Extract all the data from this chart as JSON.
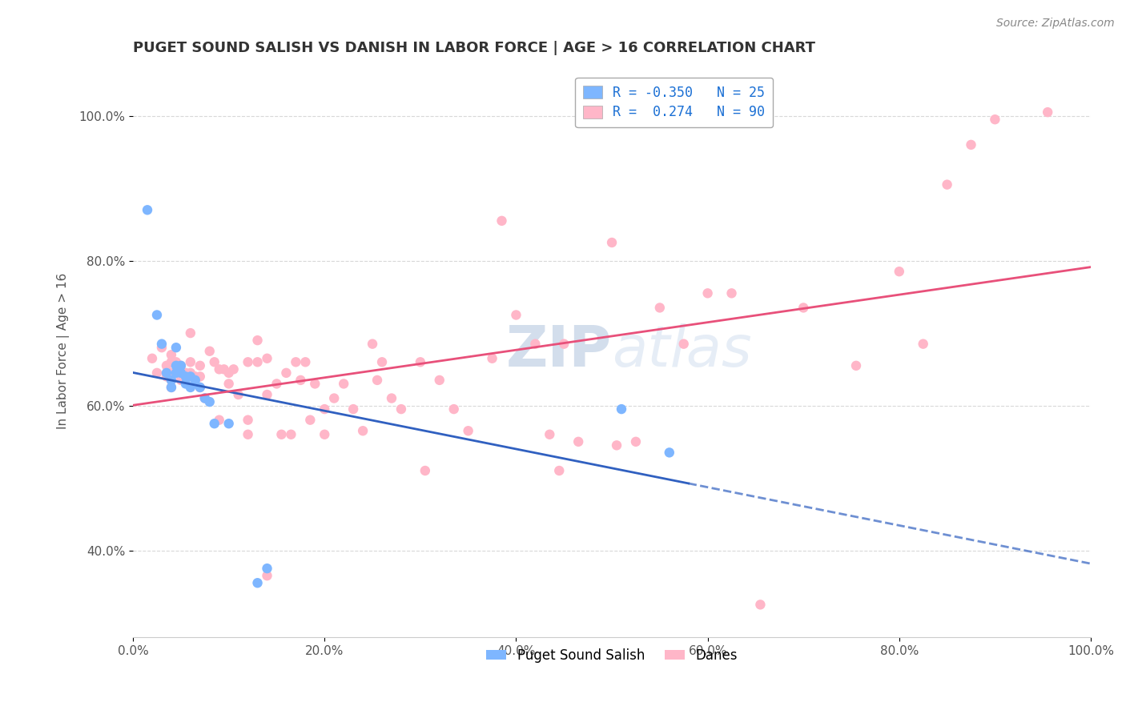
{
  "title": "PUGET SOUND SALISH VS DANISH IN LABOR FORCE | AGE > 16 CORRELATION CHART",
  "source_text": "Source: ZipAtlas.com",
  "ylabel": "In Labor Force | Age > 16",
  "xlim": [
    0.0,
    1.0
  ],
  "ylim": [
    0.28,
    1.07
  ],
  "xticks": [
    0.0,
    0.2,
    0.4,
    0.6,
    0.8,
    1.0
  ],
  "xticklabels": [
    "0.0%",
    "20.0%",
    "40.0%",
    "60.0%",
    "80.0%",
    "100.0%"
  ],
  "ytick_positions": [
    0.4,
    0.6,
    0.8,
    1.0
  ],
  "yticklabels": [
    "40.0%",
    "60.0%",
    "80.0%",
    "100.0%"
  ],
  "watermark_zip": "ZIP",
  "watermark_atlas": "atlas",
  "blue_color": "#7EB6FF",
  "pink_color": "#FFB6C8",
  "blue_line_color": "#3060C0",
  "pink_line_color": "#E8507A",
  "blue_line_solid_end": 0.58,
  "blue_scatter": [
    [
      0.015,
      0.87
    ],
    [
      0.025,
      0.725
    ],
    [
      0.03,
      0.685
    ],
    [
      0.035,
      0.645
    ],
    [
      0.04,
      0.635
    ],
    [
      0.04,
      0.625
    ],
    [
      0.045,
      0.68
    ],
    [
      0.045,
      0.655
    ],
    [
      0.045,
      0.645
    ],
    [
      0.05,
      0.655
    ],
    [
      0.05,
      0.645
    ],
    [
      0.055,
      0.64
    ],
    [
      0.055,
      0.63
    ],
    [
      0.06,
      0.64
    ],
    [
      0.06,
      0.625
    ],
    [
      0.065,
      0.635
    ],
    [
      0.07,
      0.625
    ],
    [
      0.075,
      0.61
    ],
    [
      0.08,
      0.605
    ],
    [
      0.085,
      0.575
    ],
    [
      0.1,
      0.575
    ],
    [
      0.13,
      0.355
    ],
    [
      0.14,
      0.375
    ],
    [
      0.51,
      0.595
    ],
    [
      0.56,
      0.535
    ]
  ],
  "pink_scatter": [
    [
      0.02,
      0.665
    ],
    [
      0.025,
      0.645
    ],
    [
      0.03,
      0.68
    ],
    [
      0.035,
      0.655
    ],
    [
      0.035,
      0.64
    ],
    [
      0.04,
      0.67
    ],
    [
      0.04,
      0.66
    ],
    [
      0.04,
      0.645
    ],
    [
      0.04,
      0.635
    ],
    [
      0.04,
      0.625
    ],
    [
      0.045,
      0.66
    ],
    [
      0.05,
      0.655
    ],
    [
      0.05,
      0.645
    ],
    [
      0.05,
      0.635
    ],
    [
      0.055,
      0.645
    ],
    [
      0.06,
      0.7
    ],
    [
      0.06,
      0.66
    ],
    [
      0.06,
      0.645
    ],
    [
      0.065,
      0.64
    ],
    [
      0.07,
      0.655
    ],
    [
      0.07,
      0.64
    ],
    [
      0.07,
      0.625
    ],
    [
      0.075,
      0.61
    ],
    [
      0.08,
      0.675
    ],
    [
      0.085,
      0.66
    ],
    [
      0.09,
      0.65
    ],
    [
      0.09,
      0.58
    ],
    [
      0.095,
      0.65
    ],
    [
      0.1,
      0.645
    ],
    [
      0.1,
      0.63
    ],
    [
      0.105,
      0.65
    ],
    [
      0.11,
      0.615
    ],
    [
      0.12,
      0.66
    ],
    [
      0.12,
      0.58
    ],
    [
      0.12,
      0.56
    ],
    [
      0.13,
      0.69
    ],
    [
      0.13,
      0.66
    ],
    [
      0.14,
      0.665
    ],
    [
      0.14,
      0.615
    ],
    [
      0.14,
      0.365
    ],
    [
      0.15,
      0.63
    ],
    [
      0.155,
      0.56
    ],
    [
      0.16,
      0.645
    ],
    [
      0.165,
      0.56
    ],
    [
      0.17,
      0.66
    ],
    [
      0.175,
      0.635
    ],
    [
      0.18,
      0.66
    ],
    [
      0.185,
      0.58
    ],
    [
      0.19,
      0.63
    ],
    [
      0.2,
      0.595
    ],
    [
      0.2,
      0.56
    ],
    [
      0.21,
      0.61
    ],
    [
      0.22,
      0.63
    ],
    [
      0.23,
      0.595
    ],
    [
      0.24,
      0.565
    ],
    [
      0.25,
      0.685
    ],
    [
      0.255,
      0.635
    ],
    [
      0.26,
      0.66
    ],
    [
      0.27,
      0.61
    ],
    [
      0.28,
      0.595
    ],
    [
      0.3,
      0.66
    ],
    [
      0.305,
      0.51
    ],
    [
      0.32,
      0.635
    ],
    [
      0.335,
      0.595
    ],
    [
      0.35,
      0.565
    ],
    [
      0.375,
      0.665
    ],
    [
      0.385,
      0.855
    ],
    [
      0.4,
      0.725
    ],
    [
      0.42,
      0.685
    ],
    [
      0.435,
      0.56
    ],
    [
      0.445,
      0.51
    ],
    [
      0.45,
      0.685
    ],
    [
      0.465,
      0.55
    ],
    [
      0.5,
      0.825
    ],
    [
      0.505,
      0.545
    ],
    [
      0.525,
      0.55
    ],
    [
      0.55,
      0.735
    ],
    [
      0.575,
      0.685
    ],
    [
      0.6,
      0.755
    ],
    [
      0.625,
      0.755
    ],
    [
      0.655,
      0.325
    ],
    [
      0.7,
      0.735
    ],
    [
      0.755,
      0.655
    ],
    [
      0.8,
      0.785
    ],
    [
      0.825,
      0.685
    ],
    [
      0.85,
      0.905
    ],
    [
      0.875,
      0.96
    ],
    [
      0.9,
      0.995
    ],
    [
      0.955,
      1.005
    ]
  ],
  "background_color": "#ffffff",
  "grid_color": "#d8d8d8"
}
